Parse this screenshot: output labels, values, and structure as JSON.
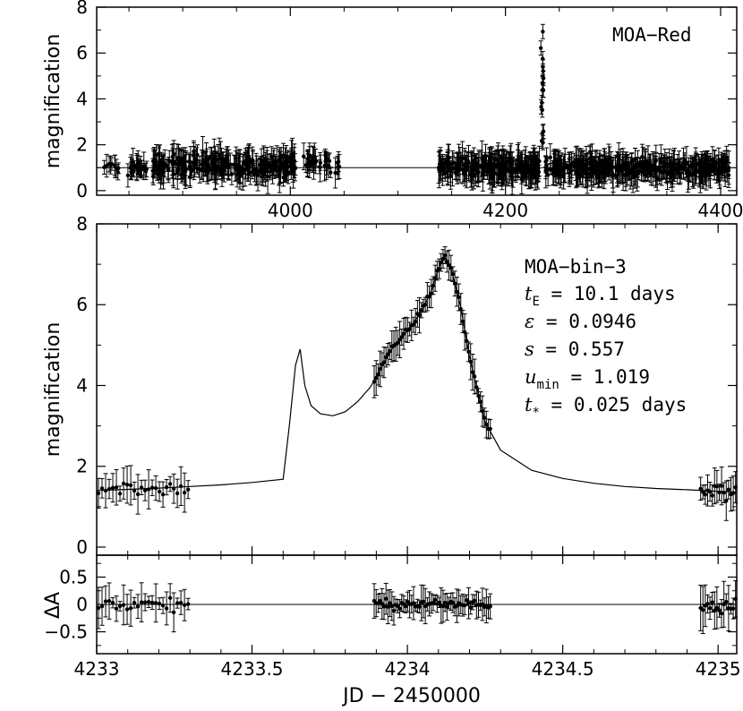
{
  "chart_data": [
    {
      "id": "top",
      "type": "scatter",
      "ylabel": "magnification",
      "xlim": [
        3820,
        4415
      ],
      "ylim": [
        -0.2,
        8
      ],
      "xticks": [
        4000,
        4200,
        4400
      ],
      "yticks": [
        0,
        2,
        4,
        6,
        8
      ],
      "annotation": "MOA-Red",
      "model_baseline": 1.0,
      "data_segments": [
        {
          "x": [
            3825,
            3843
          ],
          "center": 1.0,
          "scatter": 0.35,
          "err": 0.35,
          "n": 10
        },
        {
          "x": [
            3847,
            3868
          ],
          "center": 1.0,
          "scatter": 0.45,
          "err": 0.4,
          "n": 25
        },
        {
          "x": [
            3872,
            4005
          ],
          "center": 1.1,
          "scatter": 0.7,
          "err": 0.6,
          "n": 260
        },
        {
          "x": [
            4012,
            4046
          ],
          "center": 1.2,
          "scatter": 0.6,
          "err": 0.5,
          "n": 35
        },
        {
          "x": [
            4138,
            4232
          ],
          "center": 1.0,
          "scatter": 0.6,
          "err": 0.6,
          "n": 230
        },
        {
          "x": [
            4237,
            4408
          ],
          "center": 1.0,
          "scatter": 0.55,
          "err": 0.55,
          "n": 380
        }
      ],
      "spike": {
        "x": 4234.1,
        "peak": 7.5,
        "base": 1.8
      }
    },
    {
      "id": "middle",
      "type": "scatter",
      "ylabel": "magnification",
      "xlim": [
        4233,
        4235.06
      ],
      "ylim": [
        -0.2,
        8
      ],
      "yticks": [
        0,
        2,
        4,
        6,
        8
      ],
      "annotation": {
        "name": "MOA-bin-3",
        "rows": [
          {
            "sym": "t",
            "sub": "E",
            "value": "= 10.1 days"
          },
          {
            "sym": "ε",
            "sub": "",
            "value": "= 0.0946"
          },
          {
            "sym": "s",
            "sub": "",
            "value": "= 0.557"
          },
          {
            "sym": "u",
            "sub": "min",
            "value": "= 1.019"
          },
          {
            "sym": "t",
            "sub": "*",
            "value": "= 0.025 days"
          }
        ]
      },
      "model_curve": {
        "x": [
          4233.0,
          4233.1,
          4233.2,
          4233.3,
          4233.4,
          4233.5,
          4233.6,
          4233.62,
          4233.64,
          4233.655,
          4233.67,
          4233.69,
          4233.72,
          4233.76,
          4233.8,
          4233.84,
          4233.88,
          4233.9,
          4233.92,
          4233.95,
          4233.98,
          4234.0,
          4234.02,
          4234.05,
          4234.08,
          4234.1,
          4234.12,
          4234.14,
          4234.17,
          4234.2,
          4234.25,
          4234.3,
          4234.4,
          4234.5,
          4234.6,
          4234.7,
          4234.8,
          4234.9,
          4235.0,
          4235.06
        ],
        "y": [
          1.4,
          1.43,
          1.46,
          1.5,
          1.54,
          1.6,
          1.68,
          3.0,
          4.5,
          4.9,
          4.0,
          3.5,
          3.3,
          3.25,
          3.35,
          3.6,
          3.95,
          4.2,
          4.5,
          4.9,
          5.2,
          5.35,
          5.55,
          5.9,
          6.4,
          6.9,
          7.2,
          6.9,
          6.0,
          4.7,
          3.1,
          2.4,
          1.9,
          1.7,
          1.58,
          1.5,
          1.45,
          1.42,
          1.38,
          1.36
        ]
      },
      "data_segments": [
        {
          "x": [
            4233.0,
            4233.3
          ],
          "base": 1.45,
          "scatter": 0.25,
          "err": 0.35,
          "n": 26
        },
        {
          "x": [
            4233.89,
            4234.27
          ],
          "follow_model": true,
          "scatter": 0.12,
          "err": 0.3,
          "n": 60
        },
        {
          "x": [
            4234.94,
            4235.06
          ],
          "base": 1.4,
          "scatter": 0.3,
          "err": 0.35,
          "n": 16
        }
      ]
    },
    {
      "id": "bottom",
      "type": "scatter",
      "ylabel": "ΔA",
      "xlabel": "JD − 2450000",
      "xlim": [
        4233,
        4235.06
      ],
      "ylim": [
        -0.9,
        0.9
      ],
      "xticks": [
        4233,
        4233.5,
        4234,
        4234.5,
        4235
      ],
      "yticks": [
        -0.5,
        0,
        0.5
      ],
      "ytick_labels": [
        "−0.5",
        "0",
        "0.5"
      ],
      "model_baseline": 0,
      "data_segments": [
        {
          "x": [
            4233.0,
            4233.3
          ],
          "scatter": 0.18,
          "err": 0.3,
          "n": 26
        },
        {
          "x": [
            4233.89,
            4234.27
          ],
          "scatter": 0.13,
          "err": 0.25,
          "n": 60
        },
        {
          "x": [
            4234.94,
            4235.06
          ],
          "scatter": 0.25,
          "err": 0.35,
          "n": 16
        }
      ]
    }
  ],
  "labels": {
    "top_ylabel": "magnification",
    "mid_ylabel": "magnification",
    "bot_ylabel": "ΔA",
    "xlabel": "JD − 2450000",
    "top_annotation": "MOA−Red",
    "mid_name": "MOA−bin−3"
  }
}
